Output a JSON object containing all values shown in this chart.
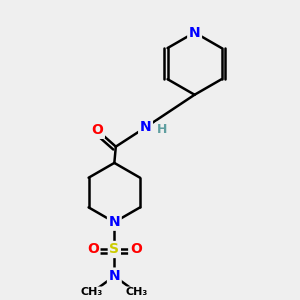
{
  "bg_color": "#efefef",
  "line_color": "#000000",
  "bond_width": 1.8,
  "atom_colors": {
    "N": "#0000FF",
    "O": "#FF0000",
    "S": "#cccc00",
    "H": "#5f9ea0",
    "C": "#000000"
  }
}
